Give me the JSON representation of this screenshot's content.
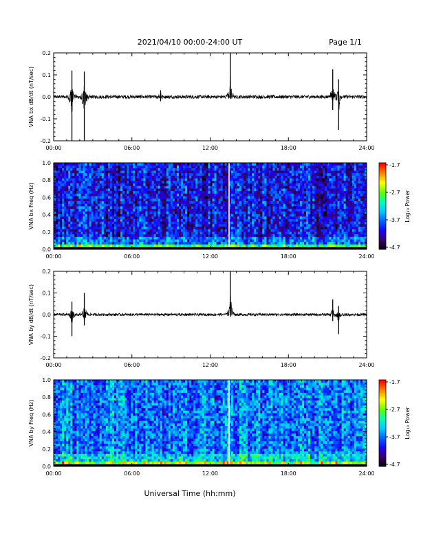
{
  "header": {
    "title": "2021/04/10  00:00-24:00 UT",
    "page": "Page 1/1"
  },
  "footer": {
    "xlabel": "Universal Time (hh:mm)"
  },
  "colors": {
    "trace": "#000000",
    "colormap": [
      "#000000",
      "#3b0066",
      "#1a00ff",
      "#0060ff",
      "#00c8ff",
      "#00ffb4",
      "#60ff00",
      "#ffff00",
      "#ff8000",
      "#ff0000"
    ]
  },
  "chart_data": [
    {
      "type": "line",
      "ylabel": "VNA bx dB/dt (nT/sec)",
      "xlim": [
        0,
        24
      ],
      "ylim": [
        -0.2,
        0.2
      ],
      "xticks": [
        "00:00",
        "06:00",
        "12:00",
        "18:00",
        "24:00"
      ],
      "yticks": [
        "0.2",
        "0.1",
        "0.0",
        "-0.1",
        "-0.2"
      ],
      "baseline": 0.0,
      "noise_amplitude": 0.008,
      "events": [
        {
          "t": 1.4,
          "max": 0.12,
          "min": -0.2
        },
        {
          "t": 2.35,
          "max": 0.115,
          "min": -0.2
        },
        {
          "t": 8.2,
          "max": 0.03,
          "min": -0.02
        },
        {
          "t": 13.55,
          "max": 0.2,
          "min": -0.01
        },
        {
          "t": 21.4,
          "max": 0.125,
          "min": -0.06
        },
        {
          "t": 21.85,
          "max": 0.08,
          "min": -0.15
        }
      ]
    },
    {
      "type": "heatmap",
      "ylabel": "VNA bx Freq (Hz)",
      "xlim": [
        0,
        24
      ],
      "ylim": [
        0,
        1.0
      ],
      "xticks": [
        "00:00",
        "06:00",
        "12:00",
        "18:00",
        "24:00"
      ],
      "yticks": [
        "1.0",
        "0.8",
        "0.6",
        "0.4",
        "0.2",
        "0.0"
      ],
      "colorbar": {
        "label": "Log₁₀ Power",
        "ticks": [
          "-1.7",
          "-2.7",
          "-3.7",
          "-4.7"
        ],
        "range": [
          -4.7,
          -1.7
        ]
      },
      "gap_time": 13.45,
      "typical_log_power": -4.0
    },
    {
      "type": "line",
      "ylabel": "VNA by dB/dt (nT/sec)",
      "xlim": [
        0,
        24
      ],
      "ylim": [
        -0.2,
        0.2
      ],
      "xticks": [
        "00:00",
        "06:00",
        "12:00",
        "18:00",
        "24:00"
      ],
      "yticks": [
        "0.2",
        "0.1",
        "0.0",
        "-0.1",
        "-0.2"
      ],
      "baseline": 0.0,
      "noise_amplitude": 0.006,
      "events": [
        {
          "t": 1.4,
          "max": 0.06,
          "min": -0.1
        },
        {
          "t": 2.35,
          "max": 0.1,
          "min": -0.05
        },
        {
          "t": 13.55,
          "max": 0.2,
          "min": -0.01
        },
        {
          "t": 21.4,
          "max": 0.07,
          "min": -0.03
        },
        {
          "t": 21.85,
          "max": 0.04,
          "min": -0.09
        }
      ]
    },
    {
      "type": "heatmap",
      "ylabel": "VNA by Freq (Hz)",
      "xlim": [
        0,
        24
      ],
      "ylim": [
        0,
        1.0
      ],
      "xticks": [
        "00:00",
        "06:00",
        "12:00",
        "18:00",
        "24:00"
      ],
      "yticks": [
        "1.0",
        "0.8",
        "0.6",
        "0.4",
        "0.2",
        "0.0"
      ],
      "colorbar": {
        "label": "Log₁₀ Power",
        "ticks": [
          "-1.7",
          "-2.7",
          "-3.7",
          "-4.7"
        ],
        "range": [
          -4.7,
          -1.7
        ]
      },
      "gap_time": 13.45,
      "typical_log_power": -3.6
    }
  ]
}
